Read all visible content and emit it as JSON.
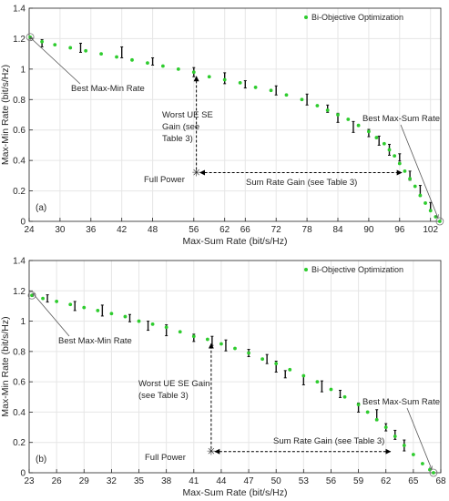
{
  "chart_data": [
    {
      "type": "scatter",
      "panel_label": "(a)",
      "xlabel": "Max-Sum Rate (bit/s/Hz)",
      "ylabel": "Max-Min Rate (bit/s/Hz)",
      "xlim": [
        24,
        104
      ],
      "ylim": [
        0,
        1.4
      ],
      "xticks": [
        24,
        30,
        36,
        42,
        48,
        56,
        62,
        66,
        72,
        78,
        84,
        90,
        96,
        102
      ],
      "yticks": [
        0,
        0.2,
        0.4,
        0.6,
        0.8,
        1,
        1.2,
        1.4
      ],
      "tick_labels_x": [
        "24",
        "30",
        "36",
        "42",
        "48",
        "56",
        "62",
        "66",
        "72",
        "78",
        "84",
        "90",
        "96",
        "102"
      ],
      "tick_labels_y": [
        "0",
        "0.2",
        "0.4",
        "0.6",
        "0.8",
        "1",
        "1.2",
        "1.4"
      ],
      "grid": true,
      "legend": {
        "placement": "top-right",
        "entries": [
          "Bi-Objective Optimization"
        ]
      },
      "series": [
        {
          "name": "Bi-Objective Optimization",
          "color": "#2ecc2e",
          "x": [
            24.2,
            26.5,
            29.0,
            32.0,
            35.0,
            38.0,
            41.0,
            44.0,
            47.0,
            50.0,
            53.0,
            56.0,
            59.0,
            62.0,
            65.0,
            68.0,
            71.0,
            74.0,
            77.0,
            80.0,
            82.0,
            84.0,
            86.0,
            88.0,
            90.0,
            91.5,
            93.0,
            94.0,
            95.0,
            96.0,
            97.0,
            98.0,
            99.0,
            100.0,
            101.0,
            102.0,
            103.0,
            103.8
          ],
          "y": [
            1.21,
            1.18,
            1.16,
            1.14,
            1.12,
            1.1,
            1.08,
            1.06,
            1.04,
            1.02,
            1.0,
            0.98,
            0.95,
            0.93,
            0.91,
            0.88,
            0.86,
            0.83,
            0.8,
            0.76,
            0.73,
            0.7,
            0.67,
            0.63,
            0.59,
            0.55,
            0.51,
            0.47,
            0.43,
            0.38,
            0.33,
            0.28,
            0.23,
            0.17,
            0.12,
            0.07,
            0.03,
            0.0
          ]
        }
      ],
      "error_bars_x": [
        26.5,
        34.0,
        42.0,
        48.0,
        56.0,
        62.0,
        66.0,
        72.0,
        78.0,
        82.0,
        84.0,
        87.0,
        90.0,
        92.0,
        94.0,
        96.0,
        98.0,
        100.0,
        102.0
      ],
      "error_bars_y": [
        1.17,
        1.14,
        1.11,
        1.05,
        0.98,
        0.94,
        0.9,
        0.86,
        0.8,
        0.74,
        0.68,
        0.62,
        0.58,
        0.53,
        0.47,
        0.42,
        0.3,
        0.2,
        0.1
      ],
      "full_power_point": {
        "x": 56.5,
        "y": 0.32
      },
      "annotations": [
        {
          "text": "Best Max-Min Rate",
          "x": 24.2,
          "y": 1.21
        },
        {
          "text": "Worst UE SE Gain (see Table 3)",
          "lines": [
            "Worst UE SE",
            "Gain (see",
            "Table 3)"
          ]
        },
        {
          "text": "Best Max-Sum Rate",
          "x": 103.8,
          "y": 0.0
        },
        {
          "text": "Full Power"
        },
        {
          "text": "Sum Rate Gain (see Table 3)"
        }
      ]
    },
    {
      "type": "scatter",
      "panel_label": "(b)",
      "xlabel": "Max-Sum Rate (bit/s/Hz)",
      "ylabel": "Max-Min Rate (bit/s/Hz)",
      "xlim": [
        23,
        68
      ],
      "ylim": [
        0,
        1.4
      ],
      "xticks": [
        23,
        26,
        29,
        32,
        35,
        38,
        41,
        44,
        47,
        50,
        53,
        56,
        59,
        62,
        65,
        68
      ],
      "yticks": [
        0,
        0.2,
        0.4,
        0.6,
        0.8,
        1,
        1.2,
        1.4
      ],
      "tick_labels_x": [
        "23",
        "26",
        "29",
        "32",
        "35",
        "38",
        "41",
        "44",
        "47",
        "50",
        "53",
        "56",
        "59",
        "62",
        "65",
        "68"
      ],
      "tick_labels_y": [
        "0",
        "0.2",
        "0.4",
        "0.6",
        "0.8",
        "1",
        "1.2",
        "1.4"
      ],
      "grid": true,
      "legend": {
        "placement": "top-right",
        "entries": [
          "Bi-Objective Optimization"
        ]
      },
      "series": [
        {
          "name": "Bi-Objective Optimization",
          "color": "#2ecc2e",
          "x": [
            23.3,
            24.5,
            26.0,
            27.5,
            29.0,
            30.5,
            32.0,
            33.5,
            35.0,
            36.5,
            38.0,
            39.5,
            41.0,
            42.5,
            44.0,
            45.5,
            47.0,
            48.5,
            50.0,
            51.5,
            53.0,
            54.5,
            56.0,
            57.5,
            59.0,
            60.0,
            61.0,
            62.0,
            63.0,
            64.0,
            65.0,
            66.0,
            66.8,
            67.2
          ],
          "y": [
            1.17,
            1.15,
            1.13,
            1.11,
            1.09,
            1.07,
            1.05,
            1.03,
            1.0,
            0.98,
            0.96,
            0.93,
            0.9,
            0.88,
            0.85,
            0.82,
            0.79,
            0.75,
            0.72,
            0.68,
            0.64,
            0.6,
            0.55,
            0.5,
            0.45,
            0.4,
            0.35,
            0.3,
            0.24,
            0.18,
            0.12,
            0.06,
            0.02,
            0.0
          ]
        }
      ],
      "error_bars_x": [
        25.0,
        28.0,
        31.0,
        34.0,
        36.0,
        38.0,
        41.0,
        43.0,
        44.5,
        47.0,
        49.0,
        50.0,
        51.0,
        53.0,
        55.0,
        57.0,
        59.0,
        61.0,
        62.0,
        63.0,
        64.0
      ],
      "error_bars_y": [
        1.15,
        1.1,
        1.07,
        1.02,
        0.97,
        0.94,
        0.89,
        0.87,
        0.84,
        0.79,
        0.75,
        0.7,
        0.65,
        0.61,
        0.57,
        0.52,
        0.43,
        0.38,
        0.3,
        0.25,
        0.18
      ],
      "full_power_point": {
        "x": 42.9,
        "y": 0.14
      },
      "annotations": [
        {
          "text": "Best Max-Min Rate",
          "x": 23.3,
          "y": 1.17
        },
        {
          "text": "Worst UE SE Gain (see Table 3)",
          "lines": [
            "Worst UE SE Gain",
            "(see Table 3)"
          ]
        },
        {
          "text": "Best Max-Sum Rate",
          "x": 67.2,
          "y": 0.0
        },
        {
          "text": "Full Power"
        },
        {
          "text": "Sum Rate Gain (see Table 3)"
        }
      ]
    }
  ]
}
